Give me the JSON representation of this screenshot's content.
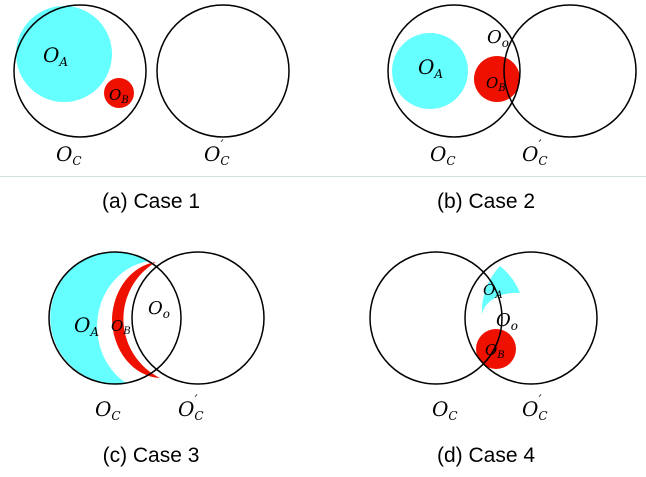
{
  "panels": [
    {
      "caption": "(a) Case 1",
      "labels": {
        "A": "O",
        "A_sub": "A",
        "B": "O",
        "B_sub": "B",
        "C": "O",
        "C_sub": "C",
        "Cp": "O",
        "Cp_sub": "C",
        "Cp_prime": "′"
      }
    },
    {
      "caption": "(b) Case 2",
      "labels": {
        "A": "O",
        "A_sub": "A",
        "B": "O",
        "B_sub": "B",
        "o": "O",
        "o_sub": "o",
        "C": "O",
        "C_sub": "C",
        "Cp": "O",
        "Cp_sub": "C",
        "Cp_prime": "′"
      }
    },
    {
      "caption": "(c) Case 3",
      "labels": {
        "A": "O",
        "A_sub": "A",
        "B": "O",
        "B_sub": "B",
        "o": "O",
        "o_sub": "o",
        "C": "O",
        "C_sub": "C",
        "Cp": "O",
        "Cp_sub": "C",
        "Cp_prime": "′"
      }
    },
    {
      "caption": "(d) Case 4",
      "labels": {
        "A": "O",
        "A_sub": "A",
        "B": "O",
        "B_sub": "B",
        "o": "O",
        "o_sub": "o",
        "C": "O",
        "C_sub": "C",
        "Cp": "O",
        "Cp_sub": "C",
        "Cp_prime": "′"
      }
    }
  ],
  "colors": {
    "region_A": "#66ffff",
    "region_B": "#ee1100",
    "outline": "#000000"
  }
}
